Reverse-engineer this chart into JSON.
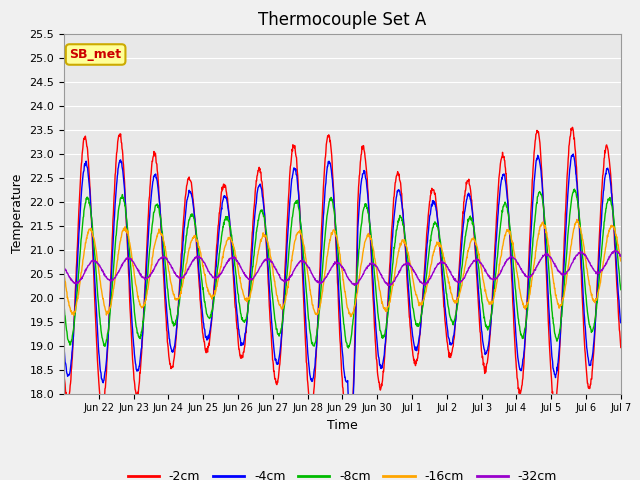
{
  "title": "Thermocouple Set A",
  "xlabel": "Time",
  "ylabel": "Temperature",
  "ylim": [
    18.0,
    25.5
  ],
  "yticks": [
    18.0,
    18.5,
    19.0,
    19.5,
    20.0,
    20.5,
    21.0,
    21.5,
    22.0,
    22.5,
    23.0,
    23.5,
    24.0,
    24.5,
    25.0,
    25.5
  ],
  "xtick_labels": [
    "Jun 22",
    "Jun 23",
    "Jun 24",
    "Jun 25",
    "Jun 26",
    "Jun 27",
    "Jun 28",
    "Jun 29",
    "Jun 30",
    "Jul 1",
    "Jul 2",
    "Jul 3",
    "Jul 4",
    "Jul 5",
    "Jul 6",
    "Jul 7"
  ],
  "colors": {
    "-2cm": "#ff0000",
    "-4cm": "#0000ff",
    "-8cm": "#00bb00",
    "-16cm": "#ffa500",
    "-32cm": "#9900cc"
  },
  "series_labels": [
    "-2cm",
    "-4cm",
    "-8cm",
    "-16cm",
    "-32cm"
  ],
  "annotation_text": "SB_met",
  "annotation_color": "#cc0000",
  "annotation_bg": "#ffff99",
  "annotation_edge": "#ccaa00",
  "plot_bg": "#e8e8e8",
  "fig_bg": "#f0f0f0",
  "grid_color": "#ffffff",
  "title_fontsize": 12,
  "axis_label_fontsize": 9,
  "tick_fontsize": 8,
  "legend_fontsize": 9,
  "n_days": 16,
  "base_temp": 20.5,
  "samples_per_day": 96
}
